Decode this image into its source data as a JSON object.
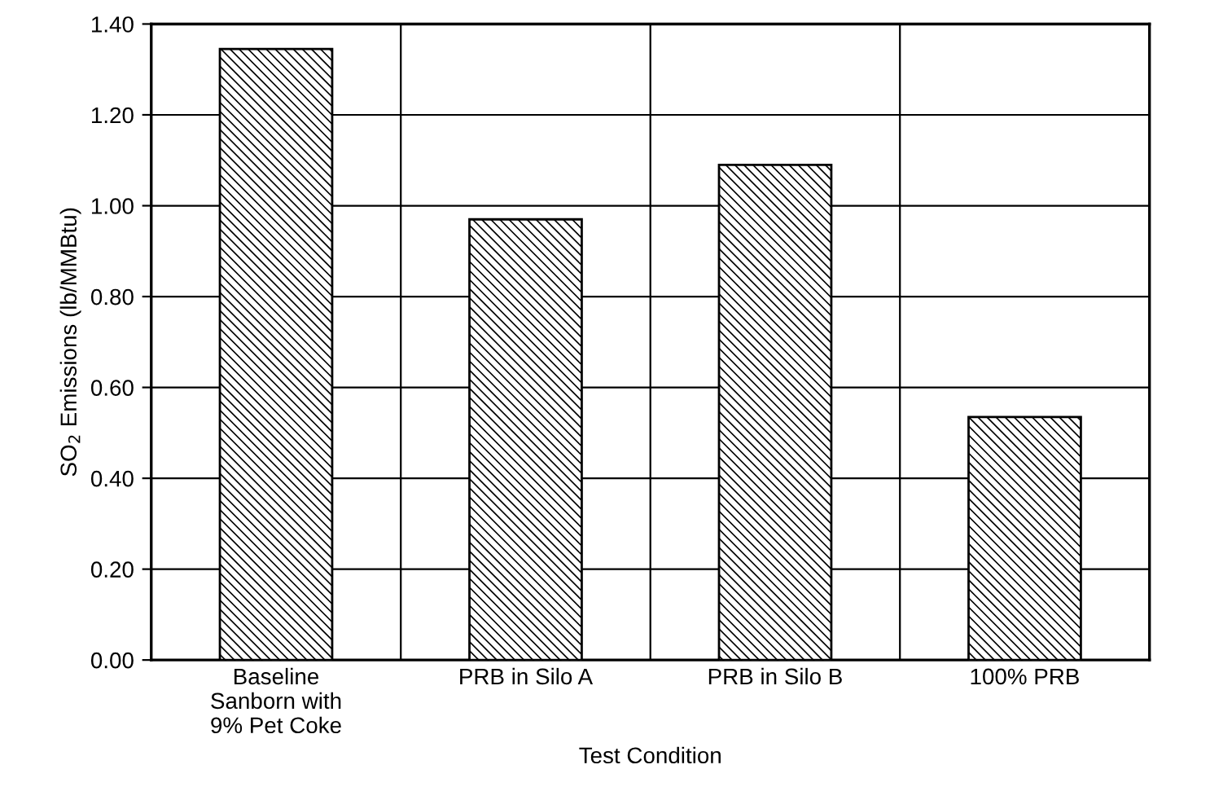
{
  "chart_data": {
    "type": "bar",
    "xlabel": "Test Condition",
    "ylabel": "SO$_{2}$ Emissions (lb/MMBtu)",
    "categories": [
      "Baseline\nSanborn with\n9% Pet Coke",
      "PRB in Silo A",
      "PRB in Silo B",
      "100% PRB"
    ],
    "values": [
      1.345,
      0.97,
      1.09,
      0.535
    ],
    "color": "#000000",
    "ylim": [
      0,
      1.4
    ],
    "yticks": [
      {
        "value": 0,
        "label": "0.00"
      },
      {
        "value": 0.2,
        "label": "0.20"
      },
      {
        "value": 0.4,
        "label": "0.40"
      },
      {
        "value": 0.6,
        "label": "0.60"
      },
      {
        "value": 0.8,
        "label": "0.80"
      },
      {
        "value": 1.0,
        "label": "1.00"
      },
      {
        "value": 1.2,
        "label": "1.20"
      },
      {
        "value": 1.4,
        "label": "1.40"
      }
    ],
    "grid": true
  }
}
